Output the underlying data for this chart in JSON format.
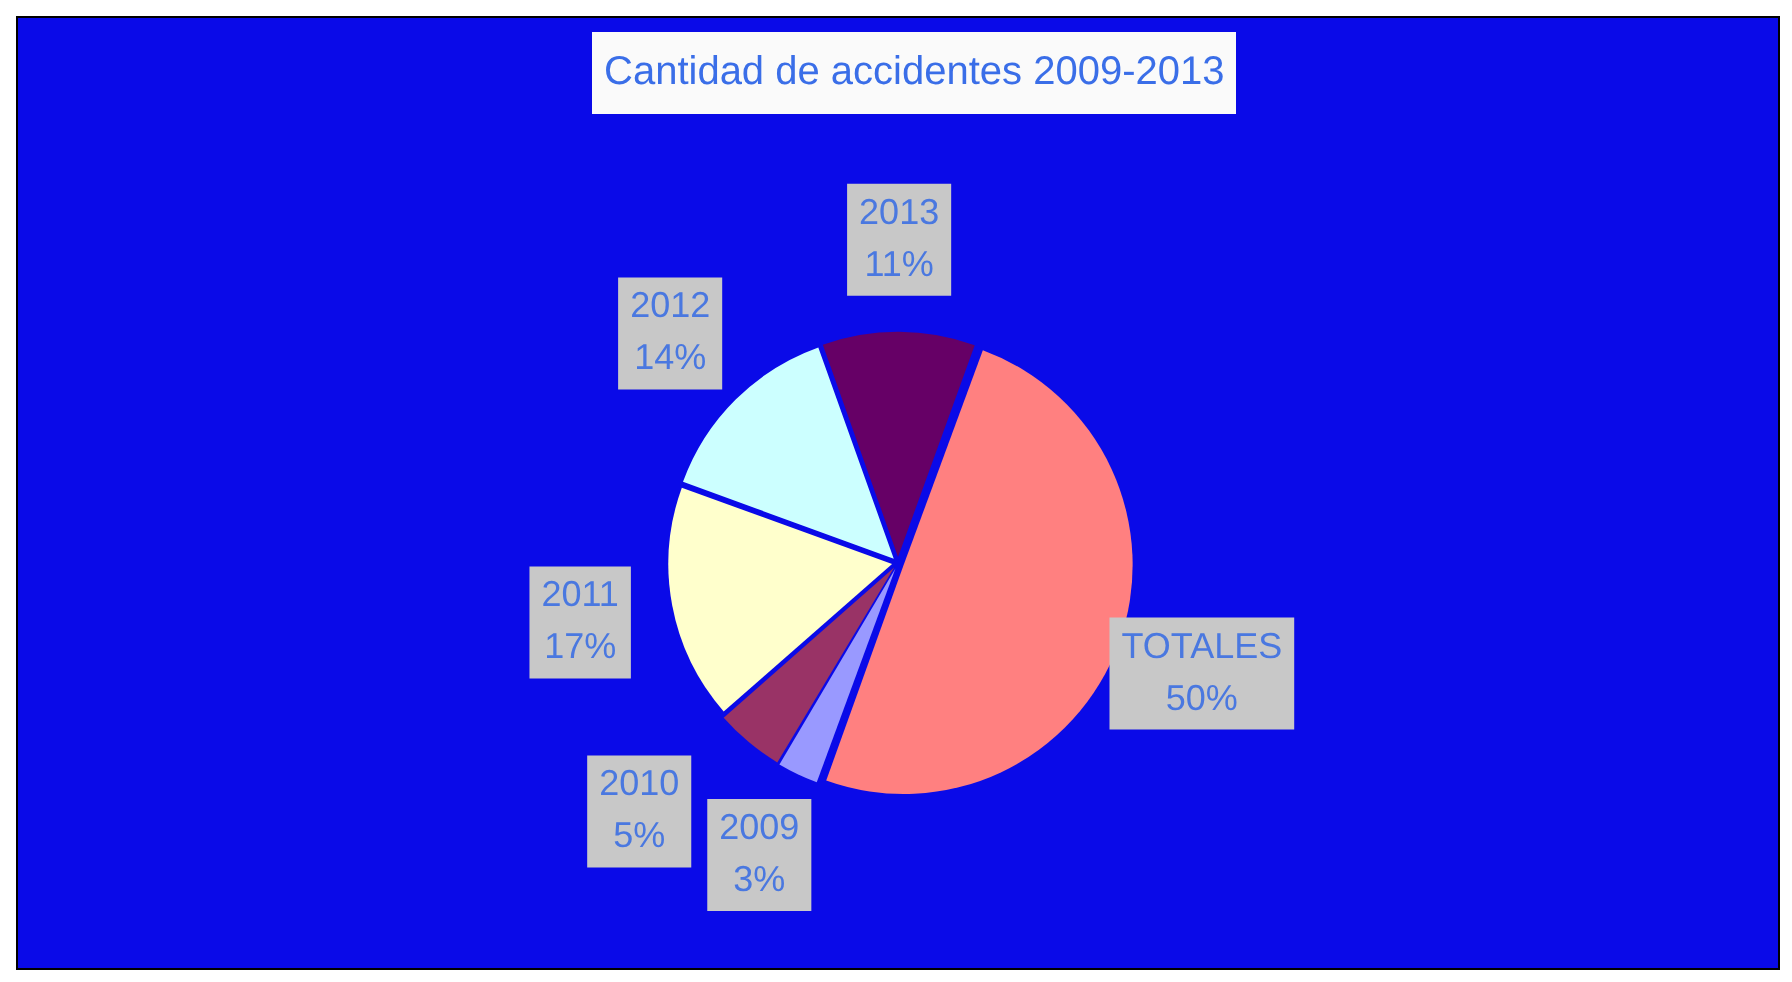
{
  "chart_data": {
    "type": "pie",
    "title": "Cantidad de accidentes 2009-2013",
    "categories": [
      "TOTALES",
      "2009",
      "2010",
      "2011",
      "2012",
      "2013"
    ],
    "values": [
      50,
      3,
      5,
      17,
      14,
      11
    ],
    "colors": [
      "#ff8080",
      "#9999ff",
      "#993366",
      "#ffffcc",
      "#ccffff",
      "#660066"
    ],
    "value_labels": [
      "50%",
      "3%",
      "5%",
      "17%",
      "14%",
      "11%"
    ],
    "legend": false
  }
}
